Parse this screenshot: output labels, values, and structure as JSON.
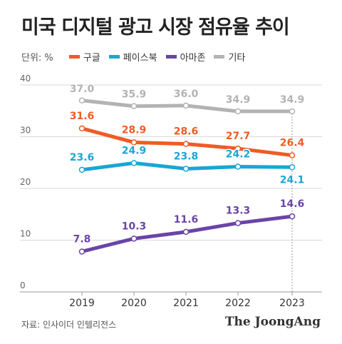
{
  "title": "미국 디지털 광고 시장 점유율 추이",
  "unit_label": "단위: %",
  "source": "자료: 인사이더 인텔리전스",
  "brand": "The JoongAng",
  "chart_data": {
    "type": "line",
    "categories": [
      "2019",
      "2020",
      "2021",
      "2022",
      "2023"
    ],
    "ylim": [
      0,
      40
    ],
    "yticks": [
      0,
      10,
      20,
      30,
      40
    ],
    "grid": true,
    "legend_position": "top-left",
    "series": [
      {
        "name": "구글",
        "color": "#f15a24",
        "values": [
          31.6,
          28.9,
          28.6,
          27.7,
          26.4
        ],
        "labels": [
          "31.6",
          "28.9",
          "28.6",
          "27.7",
          "26.4"
        ]
      },
      {
        "name": "페이스북",
        "color": "#1aa6d2",
        "values": [
          23.6,
          24.9,
          23.8,
          24.2,
          24.1
        ],
        "labels": [
          "23.6",
          "24.9",
          "23.8",
          "24.2",
          "24.1"
        ]
      },
      {
        "name": "아마존",
        "color": "#6a44a8",
        "values": [
          7.8,
          10.3,
          11.6,
          13.3,
          14.6
        ],
        "labels": [
          "7.8",
          "10.3",
          "11.6",
          "13.3",
          "14.6"
        ]
      },
      {
        "name": "기타",
        "color": "#b3b3b3",
        "values": [
          37.0,
          35.9,
          36.0,
          34.9,
          34.9
        ],
        "labels": [
          "37.0",
          "35.9",
          "36.0",
          "34.9",
          "34.9"
        ]
      }
    ]
  }
}
